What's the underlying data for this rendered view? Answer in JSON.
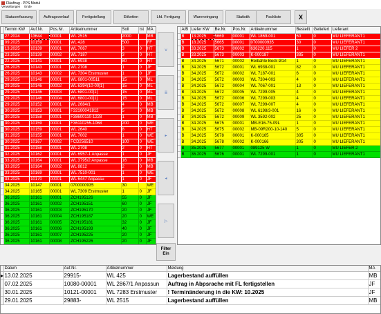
{
  "window": {
    "title": "Fläuftrag - PPS Modul",
    "menu": [
      "Verwaltungen",
      "Ende"
    ]
  },
  "toolbar": {
    "buttons": [
      "Statuserfassung",
      "Auftragsverlauf",
      "Fertigstellung",
      "Etiketten",
      "Lfd. Fertigung",
      "Wareneingang",
      "Statistik",
      "Packliste"
    ],
    "close": "X"
  },
  "left_table": {
    "headers": [
      "Termin KW",
      "Auf.Nr.",
      "Pos.Nr.",
      "Artikelnummer",
      "Soll",
      "Ist",
      "MA"
    ],
    "rows": [
      {
        "c": "red",
        "v": [
          "27.2024",
          "13644",
          "00001",
          "WL 2515",
          "2000",
          "",
          "MB"
        ]
      },
      {
        "c": "red",
        "v": [
          "09.2025",
          "10159",
          "00001",
          "WL 428",
          "500",
          "",
          "FF"
        ]
      },
      {
        "c": "red",
        "v": [
          "13.2025",
          "10139",
          "00001",
          "WL 7067",
          "3",
          "0",
          "HT"
        ]
      },
      {
        "c": "red",
        "v": [
          "23.2025",
          "10139",
          "00002",
          "WL 7187",
          "3",
          "0",
          "HT"
        ]
      },
      {
        "c": "red",
        "v": [
          "22.2025",
          "10141",
          "00001",
          "WL 6938",
          "80",
          "0",
          "HT"
        ]
      },
      {
        "c": "red",
        "v": [
          "26.2025",
          "10143",
          "00001",
          "WL 2708",
          "1",
          "0",
          "JF"
        ]
      },
      {
        "c": "red",
        "v": [
          "26.2025",
          "10143",
          "00002",
          "WL 7304 Erstmuster",
          "1",
          "0",
          "JF"
        ]
      },
      {
        "c": "red",
        "v": [
          "29.2025",
          "10146",
          "00001",
          "WL 6801-00511",
          "15",
          "0",
          "ML"
        ]
      },
      {
        "c": "red",
        "v": [
          "29.2025",
          "10146",
          "00002",
          "WL 6394(10-00[1]",
          "15",
          "0",
          "ML"
        ]
      },
      {
        "c": "red",
        "v": [
          "29.2025",
          "10146",
          "00003",
          "WL 6801-00[1]",
          "15",
          "0",
          "ML"
        ]
      },
      {
        "c": "red",
        "v": [
          "29.2025",
          "10146",
          "00004",
          "WL 6801-00[1]",
          "15",
          "0",
          "ML"
        ]
      },
      {
        "c": "red",
        "v": [
          "29.2025",
          "10152",
          "00001",
          "WL 2684/1",
          "4",
          "0",
          "MB"
        ]
      },
      {
        "c": "red",
        "v": [
          "30.2025",
          "10153",
          "00001",
          "F32100041812",
          "5",
          "0",
          "MB"
        ]
      },
      {
        "c": "red",
        "v": [
          "30.2025",
          "10158",
          "00001",
          "F38600110-1228",
          "1",
          "0",
          "MB"
        ]
      },
      {
        "c": "red",
        "v": [
          "30.2025",
          "10159",
          "00001",
          "F36110255-1068",
          "200",
          "0",
          "WE"
        ]
      },
      {
        "c": "red",
        "v": [
          "30.2025",
          "10159",
          "00001",
          "WL 2640",
          "8",
          "0",
          "HT"
        ]
      },
      {
        "c": "red",
        "v": [
          "31.2025",
          "10155",
          "00001",
          "WL 7002",
          "1",
          "0",
          "WE"
        ]
      },
      {
        "c": "red",
        "v": [
          "30.2025",
          "10167",
          "00002",
          "FCD256510",
          "100",
          "0",
          "WE"
        ]
      },
      {
        "c": "red",
        "v": [
          "31.2025",
          "10158",
          "00001",
          "WL 2708",
          "2",
          "0",
          "HT"
        ]
      },
      {
        "c": "red",
        "v": [
          "32.2025",
          "10162",
          "00001",
          "WL 6957-1 Anpasse",
          "1",
          "0",
          "JF"
        ]
      },
      {
        "c": "red",
        "v": [
          "33.2025",
          "10164",
          "00001",
          "WL 3795/2 Anpasse",
          "16",
          "0",
          "MB"
        ]
      },
      {
        "c": "red",
        "v": [
          "33.2025",
          "10164",
          "00002",
          "WL 8812",
          "2",
          "0",
          "MB"
        ]
      },
      {
        "c": "red",
        "v": [
          "33.2025",
          "10169",
          "00001",
          "WL 7510-001",
          "1",
          "0",
          "WE"
        ]
      },
      {
        "c": "red",
        "v": [
          "33.2025",
          "10170",
          "00001",
          "WL 6447 Anpassu",
          "1",
          "0",
          "JF"
        ]
      },
      {
        "c": "yel",
        "v": [
          "34.2025",
          "10147",
          "00001",
          "0700000935",
          "30",
          "",
          "WE"
        ]
      },
      {
        "c": "yel",
        "v": [
          "34.2025",
          "10165",
          "00001",
          "WL 7309 Erstmuster",
          "1",
          "0",
          "JF"
        ]
      },
      {
        "c": "grn",
        "v": [
          "36.2025",
          "10161",
          "00001",
          "ZCH195126",
          "55",
          "0",
          "JF"
        ]
      },
      {
        "c": "grn",
        "v": [
          "36.2025",
          "10161",
          "00002",
          "ZCH195151",
          "60",
          "0",
          "JF"
        ]
      },
      {
        "c": "grn",
        "v": [
          "36.2025",
          "10161",
          "00003",
          "ZCH195170",
          "20",
          "0",
          "JF"
        ]
      },
      {
        "c": "grn",
        "v": [
          "36.2025",
          "10161",
          "00004",
          "ZCH195187",
          "20",
          "0",
          "WE"
        ]
      },
      {
        "c": "grn",
        "v": [
          "36.2025",
          "10161",
          "00005",
          "ZCH195181",
          "32",
          "0",
          "JF"
        ]
      },
      {
        "c": "grn",
        "v": [
          "36.2025",
          "10161",
          "00006",
          "ZCH195193",
          "40",
          "0",
          "JF"
        ]
      },
      {
        "c": "grn",
        "v": [
          "36.2025",
          "10161",
          "00007",
          "ZCH195225",
          "20",
          "0",
          "JF"
        ]
      },
      {
        "c": "grn",
        "v": [
          "36.2025",
          "10161",
          "00008",
          "ZCH195226",
          "20",
          "0",
          "JF"
        ]
      }
    ]
  },
  "middle": {
    "buttons": [
      "ⅴ",
      "ⅲ",
      "▸",
      "◂",
      "▷"
    ],
    "filter": [
      "Filter",
      "Ein"
    ]
  },
  "right_table": {
    "headers": [
      "A/B",
      "Liefer KW",
      "Be.Nr.",
      "Pos.Nr.",
      "Artikelnummer",
      "Bestellt",
      "Geliefert",
      "Lieferant"
    ],
    "rows": [
      {
        "c": "red",
        "v": [
          "B",
          "13.2025",
          "5669",
          "00001",
          "WL 1869-001",
          "60",
          "0",
          "MU LIEFERANT1"
        ]
      },
      {
        "c": "red",
        "v": [
          "B",
          "18.2025",
          "5665",
          "00001",
          "0700000935",
          "30",
          "0",
          "MU LIEFERANT1"
        ]
      },
      {
        "c": "red",
        "v": [
          "B",
          "33.2025",
          "5673",
          "00002",
          "636220.115",
          "1",
          "0",
          "MU LIEFER 2"
        ]
      },
      {
        "c": "red",
        "v": [
          "B",
          "33.2025",
          "5673",
          "00003",
          "K-000187",
          "385",
          "0",
          "MU LIEFERANT1"
        ]
      },
      {
        "c": "yel",
        "v": [
          "B",
          "34.2025",
          "5671",
          "00002",
          "Reibahle Beck Ø14",
          "1",
          "0",
          "MU LIEFERANT1"
        ]
      },
      {
        "c": "yel",
        "v": [
          "B",
          "34.2025",
          "5672",
          "00001",
          "WL 6938-001",
          "82",
          "0",
          "MU LIEFERANT1"
        ]
      },
      {
        "c": "yel",
        "v": [
          "B",
          "34.2025",
          "5672",
          "00002",
          "WL 7187-001",
          "6",
          "0",
          "MU LIEFERANT1"
        ]
      },
      {
        "c": "yel",
        "v": [
          "B",
          "34.2025",
          "5672",
          "00003",
          "WL 7304-003",
          "4",
          "0",
          "MU LIEFERANT1"
        ]
      },
      {
        "c": "yel",
        "v": [
          "B",
          "34.2025",
          "5672",
          "00004",
          "WL 7067-001",
          "13",
          "0",
          "MU LIEFERANT1"
        ]
      },
      {
        "c": "yel",
        "v": [
          "B",
          "34.2025",
          "5672",
          "00005",
          "WL 7299-005",
          "4",
          "0",
          "MU LIEFERANT1"
        ]
      },
      {
        "c": "yel",
        "v": [
          "B",
          "34.2025",
          "5672",
          "00006",
          "WL 7299-003",
          "4",
          "0",
          "MU LIEFERANT1"
        ]
      },
      {
        "c": "yel",
        "v": [
          "B",
          "34.2025",
          "5672",
          "00007",
          "WL 7299-007",
          "4",
          "0",
          "MU LIEFERANT1"
        ]
      },
      {
        "c": "yel",
        "v": [
          "B",
          "34.2025",
          "5672",
          "00008",
          "WL 6198/3-001",
          "16",
          "0",
          "MU LIEFERANT1"
        ]
      },
      {
        "c": "yel",
        "v": [
          "B",
          "34.2025",
          "5672",
          "00009",
          "WL 3592-002",
          "25",
          "0",
          "MU LIEFERANT1"
        ]
      },
      {
        "c": "yel",
        "v": [
          "B",
          "34.2025",
          "5675",
          "00001",
          "MB-E16-75-09L",
          "1",
          "0",
          "MU LIEFERANT1"
        ]
      },
      {
        "c": "yel",
        "v": [
          "B",
          "34.2025",
          "5675",
          "00002",
          "MB-09R200-10-140",
          "5",
          "0",
          "MU LIEFERANT1"
        ]
      },
      {
        "c": "yel",
        "v": [
          "B",
          "34.2025",
          "5678",
          "00001",
          "K-000165",
          "305",
          "0",
          "MU LIEFERANT1"
        ]
      },
      {
        "c": "yel",
        "v": [
          "B",
          "34.2025",
          "5678",
          "00002",
          "K-000166",
          "305",
          "0",
          "MU LIEFERANT1"
        ]
      },
      {
        "c": "grn",
        "v": [
          "B",
          "35.2025",
          "5677",
          "00001",
          "089125 W",
          "1",
          "0",
          "MU LIEFER 2"
        ]
      },
      {
        "c": "grn",
        "v": [
          "B",
          "36.2025",
          "5676",
          "00001",
          "WL 7299-001",
          "1",
          "0",
          "MU LIEFERANT1"
        ]
      }
    ]
  },
  "bottom_table": {
    "headers": [
      "Datum",
      "Auf.Nr.",
      "Artikelnummer",
      "Meldung",
      "MA"
    ],
    "rows": [
      [
        "13.02.2025",
        "29915-",
        "WL 425",
        "Lagerbestand auffüllen",
        "MB"
      ],
      [
        "07.02.2025",
        "10080-00001",
        "WL 2867/1 Anpassun",
        "Auftrag in Abpsrache mit FL fertigstellen",
        "JF"
      ],
      [
        "30.01.2025",
        "10121-00001",
        "WL 7283 Erstmuster",
        "! Terminänderung in die KW: 10.2025",
        "JF"
      ],
      [
        "29.01.2025",
        "29883-",
        "WL 2515",
        "Lagerbestand auffüllen",
        "MB"
      ]
    ]
  },
  "colors": {
    "overdue": "#ff0000",
    "current": "#ffff00",
    "future": "#00e000"
  }
}
